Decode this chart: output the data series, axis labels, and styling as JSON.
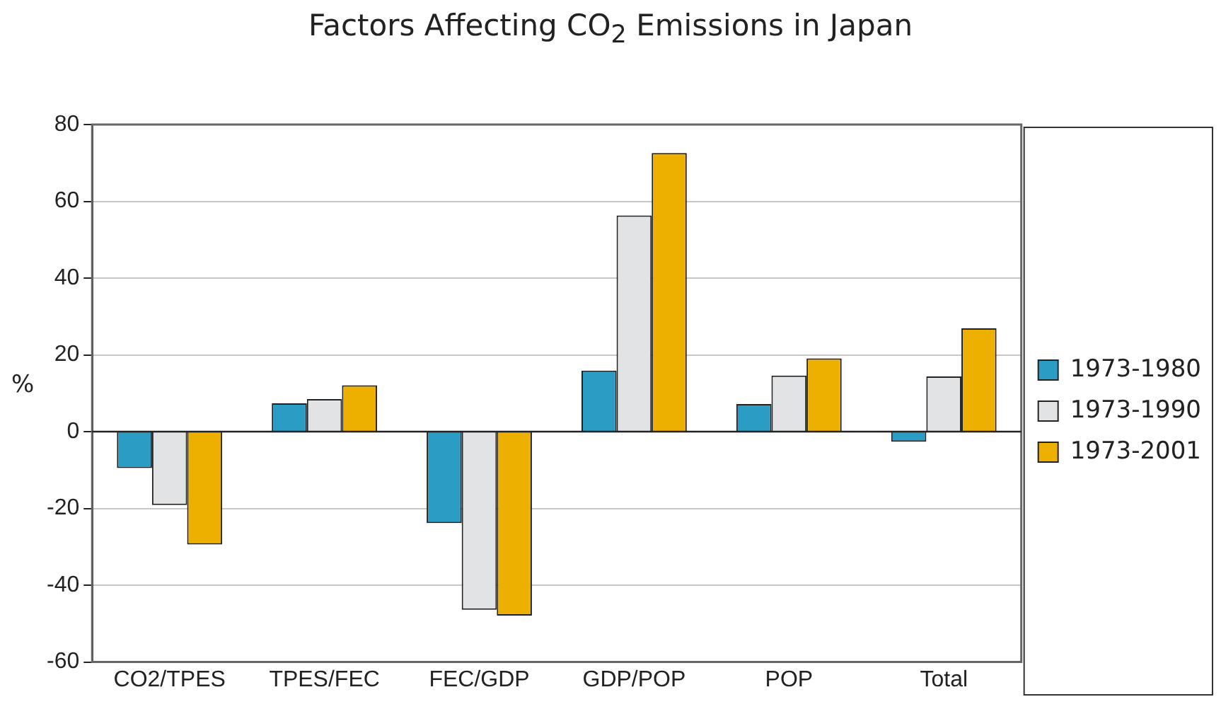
{
  "chart_data": {
    "type": "bar",
    "title": "Factors Affecting CO$_{2}$ Emissions in Japan",
    "ylabel": "%",
    "categories": [
      "CO2/TPES",
      "TPES/FEC",
      "FEC/GDP",
      "GDP/POP",
      "POP",
      "Total"
    ],
    "series": [
      {
        "name": "1973-1980",
        "color": "#2b9cc4",
        "values": [
          -9.5,
          7.4,
          -23.8,
          15.9,
          7.2,
          -2.6
        ]
      },
      {
        "name": "1973-1990",
        "color": "#e2e3e5",
        "values": [
          -19.1,
          8.5,
          -46.4,
          56.3,
          14.6,
          14.4
        ]
      },
      {
        "name": "1973-2001",
        "color": "#edb000",
        "values": [
          -29.4,
          12.1,
          -47.9,
          72.6,
          19.1,
          26.9
        ]
      }
    ],
    "ylim": [
      -60,
      80
    ],
    "yticks": [
      -60,
      -40,
      -20,
      0,
      20,
      40,
      60,
      80
    ],
    "grid": "y",
    "legend": "right"
  }
}
